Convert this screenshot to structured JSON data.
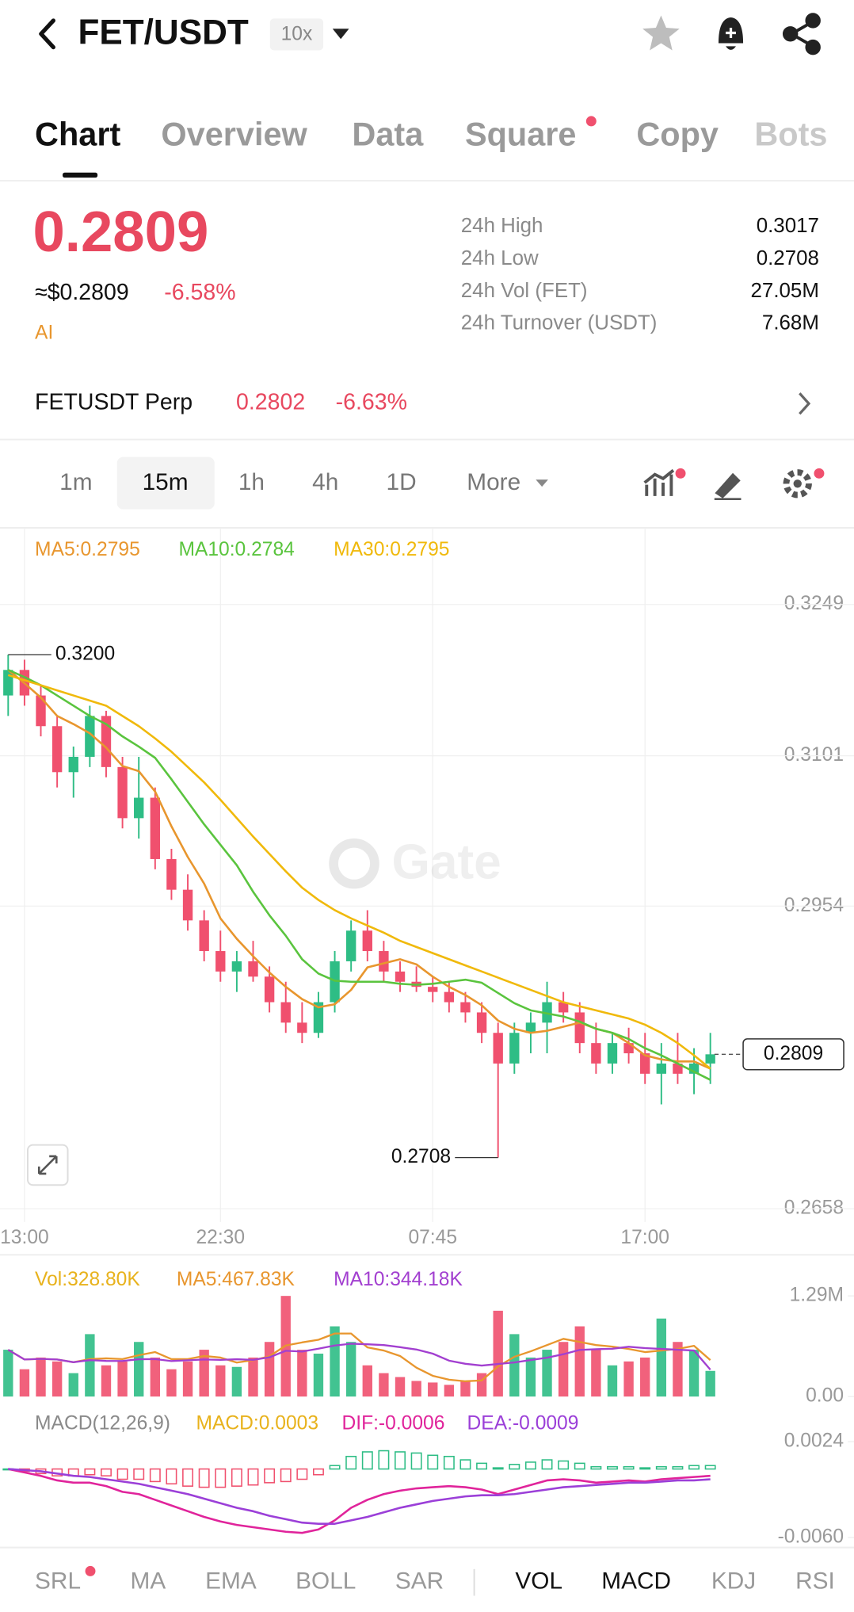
{
  "header": {
    "title": "FET/USDT",
    "leverage": "10x"
  },
  "tabs": [
    "Chart",
    "Overview",
    "Data",
    "Square",
    "Copy",
    "Bots"
  ],
  "ticker": {
    "price": "0.2809",
    "usd_price": "≈$0.2809",
    "change": "-6.58%",
    "tag": "AI",
    "stats": [
      [
        "24h High",
        "0.3017"
      ],
      [
        "24h Low",
        "0.2708"
      ],
      [
        "24h Vol (FET)",
        "27.05M"
      ],
      [
        "24h Turnover (USDT)",
        "7.68M"
      ]
    ]
  },
  "perp": {
    "name": "FETUSDT Perp",
    "price": "0.2802",
    "change": "-6.63%"
  },
  "intervals": [
    "1m",
    "15m",
    "1h",
    "4h",
    "1D",
    "More"
  ],
  "indicators": [
    "SRL",
    "MA",
    "EMA",
    "BOLL",
    "SAR",
    "VOL",
    "MACD",
    "KDJ",
    "RSI"
  ],
  "chart_data": [
    {
      "type": "candlestick",
      "x": [
        null,
        "13:00",
        null,
        null,
        null,
        null,
        null,
        null,
        null,
        null,
        null,
        null,
        null,
        "22:30",
        null,
        null,
        null,
        null,
        null,
        null,
        null,
        null,
        null,
        null,
        null,
        null,
        "07:45",
        null,
        null,
        null,
        null,
        null,
        null,
        null,
        null,
        null,
        null,
        null,
        null,
        "17:00",
        null,
        null,
        null,
        null
      ],
      "candles": [
        [
          0.316,
          0.32,
          0.314,
          0.3185
        ],
        [
          0.3185,
          0.3195,
          0.315,
          0.316
        ],
        [
          0.316,
          0.317,
          0.312,
          0.313
        ],
        [
          0.313,
          0.314,
          0.307,
          0.3085
        ],
        [
          0.3085,
          0.311,
          0.306,
          0.31
        ],
        [
          0.31,
          0.315,
          0.309,
          0.314
        ],
        [
          0.314,
          0.3145,
          0.308,
          0.309
        ],
        [
          0.309,
          0.31,
          0.303,
          0.304
        ],
        [
          0.304,
          0.31,
          0.302,
          0.306
        ],
        [
          0.306,
          0.307,
          0.299,
          0.3
        ],
        [
          0.3,
          0.301,
          0.296,
          0.297
        ],
        [
          0.297,
          0.2985,
          0.293,
          0.294
        ],
        [
          0.294,
          0.295,
          0.29,
          0.291
        ],
        [
          0.291,
          0.293,
          0.288,
          0.289
        ],
        [
          0.289,
          0.291,
          0.287,
          0.29
        ],
        [
          0.29,
          0.292,
          0.288,
          0.2885
        ],
        [
          0.2885,
          0.2895,
          0.285,
          0.286
        ],
        [
          0.286,
          0.288,
          0.283,
          0.284
        ],
        [
          0.284,
          0.286,
          0.282,
          0.283
        ],
        [
          0.283,
          0.287,
          0.2825,
          0.286
        ],
        [
          0.286,
          0.291,
          0.285,
          0.29
        ],
        [
          0.29,
          0.294,
          0.289,
          0.293
        ],
        [
          0.293,
          0.295,
          0.29,
          0.291
        ],
        [
          0.291,
          0.292,
          0.288,
          0.289
        ],
        [
          0.289,
          0.29,
          0.287,
          0.288
        ],
        [
          0.288,
          0.2895,
          0.287,
          0.2875
        ],
        [
          0.2875,
          0.2885,
          0.286,
          0.287
        ],
        [
          0.287,
          0.288,
          0.285,
          0.286
        ],
        [
          0.286,
          0.287,
          0.284,
          0.285
        ],
        [
          0.285,
          0.286,
          0.282,
          0.283
        ],
        [
          0.283,
          0.284,
          0.2708,
          0.28
        ],
        [
          0.28,
          0.284,
          0.279,
          0.283
        ],
        [
          0.283,
          0.285,
          0.281,
          0.284
        ],
        [
          0.284,
          0.288,
          0.281,
          0.286
        ],
        [
          0.286,
          0.287,
          0.284,
          0.285
        ],
        [
          0.285,
          0.286,
          0.281,
          0.282
        ],
        [
          0.282,
          0.284,
          0.279,
          0.28
        ],
        [
          0.28,
          0.283,
          0.279,
          0.282
        ],
        [
          0.282,
          0.2835,
          0.28,
          0.281
        ],
        [
          0.281,
          0.283,
          0.278,
          0.279
        ],
        [
          0.279,
          0.282,
          0.276,
          0.28
        ],
        [
          0.28,
          0.283,
          0.278,
          0.279
        ],
        [
          0.279,
          0.2815,
          0.277,
          0.28
        ],
        [
          0.28,
          0.283,
          0.278,
          0.2809
        ]
      ],
      "series": [
        {
          "name": "MA5:0.2795",
          "color": "#e8962e",
          "values": [
            0.3185,
            0.3172,
            0.3158,
            0.314,
            0.3132,
            0.3123,
            0.3109,
            0.3091,
            0.3086,
            0.3066,
            0.3032,
            0.3002,
            0.2976,
            0.2942,
            0.2922,
            0.2905,
            0.2889,
            0.2875,
            0.2863,
            0.2855,
            0.2858,
            0.2872,
            0.2894,
            0.2898,
            0.2902,
            0.2897,
            0.2885,
            0.2875,
            0.2867,
            0.2857,
            0.2842,
            0.2834,
            0.283,
            0.2832,
            0.2836,
            0.284,
            0.2834,
            0.283,
            0.282,
            0.2808,
            0.2804,
            0.2802,
            0.2802,
            0.2795
          ]
        },
        {
          "name": "MA10:0.2784",
          "color": "#5ac43e",
          "values": [
            0.3185,
            0.3178,
            0.317,
            0.316,
            0.315,
            0.314,
            0.3132,
            0.312,
            0.311,
            0.3099,
            0.3078,
            0.3056,
            0.3034,
            0.3014,
            0.2994,
            0.2968,
            0.2945,
            0.2925,
            0.2902,
            0.2888,
            0.2881,
            0.288,
            0.288,
            0.288,
            0.2878,
            0.2877,
            0.2878,
            0.288,
            0.2882,
            0.2879,
            0.2869,
            0.2859,
            0.2852,
            0.2849,
            0.2846,
            0.2841,
            0.2834,
            0.283,
            0.2824,
            0.2815,
            0.2808,
            0.28,
            0.2792,
            0.2784
          ]
        },
        {
          "name": "MA30:0.2795",
          "color": "#f0b90b",
          "values": [
            0.318,
            0.3175,
            0.317,
            0.3165,
            0.316,
            0.3155,
            0.315,
            0.314,
            0.313,
            0.3118,
            0.3105,
            0.309,
            0.3075,
            0.3058,
            0.304,
            0.3022,
            0.3005,
            0.2988,
            0.2972,
            0.296,
            0.295,
            0.2942,
            0.2935,
            0.2928,
            0.292,
            0.2914,
            0.2908,
            0.2902,
            0.2896,
            0.289,
            0.2884,
            0.2878,
            0.2872,
            0.2866,
            0.286,
            0.2856,
            0.2852,
            0.2848,
            0.2844,
            0.2838,
            0.283,
            0.282,
            0.2808,
            0.2795
          ]
        }
      ],
      "ylim": [
        0.2645,
        0.3323
      ],
      "yticks": [
        0.3249,
        0.3101,
        0.2954,
        0.2658
      ],
      "grid": true,
      "up_color": "#2ebd85",
      "down_color": "#f0506e",
      "high_label": "0.3200",
      "low_label": "0.2708",
      "price_tag": "0.2809",
      "watermark": "Gate"
    },
    {
      "type": "volume",
      "label": "Vol:328.80K",
      "color": "#e8b21c",
      "values": [
        600000,
        350000,
        500000,
        450000,
        300000,
        800000,
        400000,
        450000,
        700000,
        500000,
        350000,
        450000,
        600000,
        400000,
        380000,
        500000,
        700000,
        1290000,
        600000,
        550000,
        900000,
        700000,
        400000,
        300000,
        250000,
        200000,
        180000,
        150000,
        200000,
        300000,
        1100000,
        800000,
        500000,
        600000,
        700000,
        900000,
        600000,
        400000,
        450000,
        500000,
        1000000,
        700000,
        600000,
        328800
      ],
      "series": [
        {
          "name": "MA5:467.83K",
          "color": "#e8962e",
          "values": [
            600000,
            475000,
            483000,
            475000,
            440000,
            480000,
            490000,
            480000,
            530000,
            570000,
            480000,
            480000,
            520000,
            500000,
            436000,
            466000,
            516000,
            654000,
            694000,
            728000,
            808000,
            808000,
            630000,
            590000,
            520000,
            370000,
            266000,
            216000,
            196000,
            206000,
            386000,
            510000,
            580000,
            660000,
            740000,
            700000,
            660000,
            640000,
            610000,
            570000,
            590000,
            610000,
            650000,
            467830
          ]
        },
        {
          "name": "MA10:344.18K",
          "color": "#a23fd0",
          "values": [
            600000,
            475000,
            483000,
            475000,
            440000,
            467000,
            457000,
            456000,
            478000,
            480000,
            455000,
            465000,
            475000,
            470000,
            478000,
            470000,
            503000,
            587000,
            577000,
            614000,
            654000,
            677000,
            670000,
            660000,
            633000,
            603000,
            550000,
            460000,
            420000,
            397000,
            417000,
            437000,
            468000,
            498000,
            543000,
            598000,
            607000,
            613000,
            638000,
            621000,
            610000,
            600000,
            590000,
            344180
          ]
        }
      ],
      "ylim": [
        0,
        1290000
      ],
      "yticks": [
        {
          "value": 1290000,
          "label": "1.29M"
        },
        {
          "value": 0,
          "label": "0.00"
        }
      ]
    },
    {
      "type": "macd",
      "title": "MACD(12,26,9)",
      "up_color": "#2ebd85",
      "down_color": "#f0506e",
      "histogram": {
        "name": "MACD:0.0003",
        "color": "#e8b21c",
        "values": [
          0,
          -0.0002,
          -0.0004,
          -0.0006,
          -0.0006,
          -0.0005,
          -0.0006,
          -0.0009,
          -0.0009,
          -0.0011,
          -0.0013,
          -0.0015,
          -0.0016,
          -0.0016,
          -0.0015,
          -0.0014,
          -0.0012,
          -0.0011,
          -0.0009,
          -0.0005,
          0.0003,
          0.0011,
          0.0015,
          0.0016,
          0.0015,
          0.0014,
          0.0012,
          0.0011,
          0.0008,
          0.0005,
          0.0001,
          0.0004,
          0.0006,
          0.0008,
          0.0007,
          0.0005,
          0.0002,
          0.0002,
          0.0002,
          0.0001,
          0.0002,
          0.0002,
          0.0003,
          0.0003
        ]
      },
      "series": [
        {
          "name": "DIF:-0.0006",
          "color": "#e0249b",
          "values": [
            0,
            -0.0003,
            -0.0006,
            -0.001,
            -0.0012,
            -0.0012,
            -0.0015,
            -0.002,
            -0.0022,
            -0.0027,
            -0.0032,
            -0.0037,
            -0.0042,
            -0.0046,
            -0.0049,
            -0.0051,
            -0.0053,
            -0.0055,
            -0.0056,
            -0.0053,
            -0.0045,
            -0.0034,
            -0.0027,
            -0.0022,
            -0.0019,
            -0.0017,
            -0.0016,
            -0.0015,
            -0.0016,
            -0.0018,
            -0.0022,
            -0.0018,
            -0.0014,
            -0.001,
            -0.0009,
            -0.001,
            -0.0012,
            -0.0011,
            -0.001,
            -0.0011,
            -0.0009,
            -0.0008,
            -0.0007,
            -0.0006
          ]
        },
        {
          "name": "DEA:-0.0009",
          "color": "#9b3fd8",
          "values": [
            0,
            -0.0001,
            -0.0002,
            -0.0004,
            -0.0006,
            -0.0007,
            -0.0009,
            -0.0011,
            -0.0013,
            -0.0016,
            -0.0019,
            -0.0022,
            -0.0026,
            -0.003,
            -0.0034,
            -0.0037,
            -0.0041,
            -0.0044,
            -0.0047,
            -0.0048,
            -0.0048,
            -0.0045,
            -0.0042,
            -0.0038,
            -0.0034,
            -0.0031,
            -0.0028,
            -0.0026,
            -0.0024,
            -0.0023,
            -0.0023,
            -0.0022,
            -0.002,
            -0.0018,
            -0.0016,
            -0.0015,
            -0.0014,
            -0.0013,
            -0.0012,
            -0.0012,
            -0.0011,
            -0.001,
            -0.001,
            -0.0009
          ]
        }
      ],
      "ylim": [
        -0.0067,
        0.0032
      ],
      "yticks": [
        0.0024,
        {
          "value": -0.006,
          "label": "-0.0060"
        }
      ]
    }
  ]
}
